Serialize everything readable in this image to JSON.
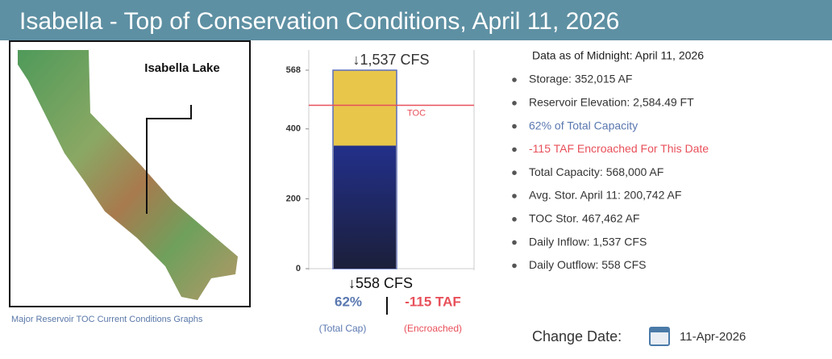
{
  "title": "Isabella - Top of Conservation Conditions, April 11, 2026",
  "map": {
    "label": "Isabella Lake",
    "caption": "Major Reservoir TOC Current Conditions Graphs"
  },
  "chart_data": {
    "type": "reservoir",
    "ylim": [
      0,
      568
    ],
    "yticks": [
      0,
      200,
      400,
      568
    ],
    "capacity": 568,
    "storage": 352.015,
    "toc": {
      "value": 467.462,
      "label": "TOC"
    },
    "capacity_color": "#e8c64a",
    "storage_color": "#1e2a78",
    "toc_color": "#e8505a",
    "inflow_label": "↓1,537 CFS",
    "outflow_label": "↓558 CFS",
    "percent": {
      "value": 62,
      "label": "62%",
      "note": "(Total Cap)",
      "color": "#5a78b0"
    },
    "encroached": {
      "value": -115,
      "label": "-115 TAF",
      "note": "(Encroached)",
      "color": "#e8505a"
    }
  },
  "info": {
    "header": "Data as of Midnight: April 11, 2026",
    "bullets": [
      {
        "text": "Storage: 352,015 AF",
        "color": "#333333"
      },
      {
        "text": "Reservoir Elevation: 2,584.49 FT",
        "color": "#333333"
      },
      {
        "text": "62% of Total Capacity",
        "color": "#5a78b0"
      },
      {
        "text": "-115 TAF Encroached For This Date",
        "color": "#e8505a"
      },
      {
        "text": "Total Capacity: 568,000 AF",
        "color": "#333333"
      },
      {
        "text": "Avg. Stor. April 11: 200,742 AF",
        "color": "#333333"
      },
      {
        "text": "TOC Stor. 467,462 AF",
        "color": "#333333"
      },
      {
        "text": "Daily Inflow: 1,537 CFS",
        "color": "#333333"
      },
      {
        "text": "Daily Outflow: 558 CFS",
        "color": "#333333"
      }
    ]
  },
  "footer": {
    "label": "Change Date:",
    "date": "11-Apr-2026"
  }
}
